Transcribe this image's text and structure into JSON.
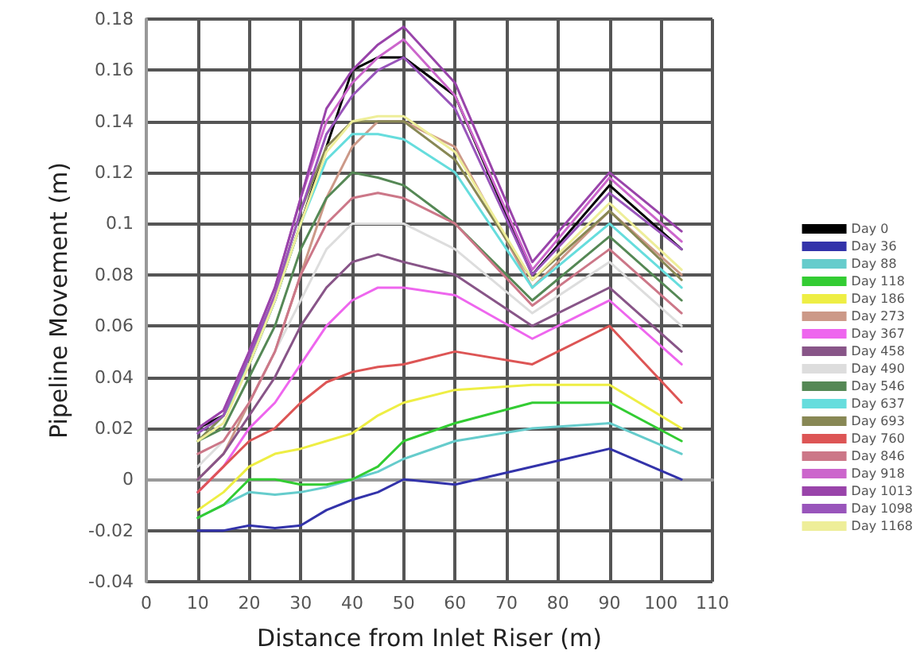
{
  "chart_data": {
    "type": "line",
    "xlabel": "Distance from Inlet Riser (m)",
    "ylabel": "Pipeline Movement (m)",
    "x": [
      10,
      15,
      20,
      25,
      30,
      35,
      40,
      45,
      50,
      60,
      75,
      90,
      104
    ],
    "xlim": [
      0,
      110
    ],
    "xticks": [
      0,
      10,
      20,
      30,
      40,
      50,
      60,
      70,
      80,
      90,
      100,
      110
    ],
    "ylim": [
      -0.04,
      0.18
    ],
    "yticks": [
      -0.04,
      -0.02,
      0,
      0.02,
      0.04,
      0.06,
      0.08,
      0.1,
      0.12,
      0.14,
      0.16,
      0.18
    ],
    "grid": true,
    "legend": "right",
    "marker": "none",
    "line_style": "solid",
    "series": [
      {
        "name": "Day 0",
        "color": "#000000",
        "values": [
          0.02,
          0.025,
          0.045,
          0.07,
          0.1,
          0.13,
          0.16,
          0.165,
          0.165,
          0.15,
          0.08,
          0.115,
          0.09
        ]
      },
      {
        "name": "Day 36",
        "color": "#3333aa",
        "values": [
          -0.02,
          -0.02,
          -0.018,
          -0.019,
          -0.018,
          -0.012,
          -0.008,
          -0.005,
          0.0,
          -0.002,
          0.005,
          0.012,
          0.0
        ]
      },
      {
        "name": "Day 88",
        "color": "#66cccc",
        "values": [
          -0.015,
          -0.01,
          -0.005,
          -0.006,
          -0.005,
          -0.003,
          0.0,
          0.003,
          0.008,
          0.015,
          0.02,
          0.022,
          0.01
        ]
      },
      {
        "name": "Day 118",
        "color": "#33cc33",
        "values": [
          -0.015,
          -0.01,
          0.0,
          0.0,
          -0.002,
          -0.002,
          0.0,
          0.005,
          0.015,
          0.022,
          0.03,
          0.03,
          0.015
        ]
      },
      {
        "name": "Day 186",
        "color": "#eeee44",
        "values": [
          -0.012,
          -0.005,
          0.005,
          0.01,
          0.012,
          0.015,
          0.018,
          0.025,
          0.03,
          0.035,
          0.037,
          0.037,
          0.02
        ]
      },
      {
        "name": "Day 273",
        "color": "#cc9988",
        "values": [
          0.0,
          0.01,
          0.03,
          0.05,
          0.08,
          0.11,
          0.13,
          0.14,
          0.14,
          0.13,
          0.075,
          0.105,
          0.08
        ]
      },
      {
        "name": "Day 367",
        "color": "#ee66ee",
        "values": [
          -0.005,
          0.005,
          0.02,
          0.03,
          0.045,
          0.06,
          0.07,
          0.075,
          0.075,
          0.072,
          0.055,
          0.07,
          0.045
        ]
      },
      {
        "name": "Day 458",
        "color": "#885588",
        "values": [
          0.0,
          0.01,
          0.025,
          0.04,
          0.06,
          0.075,
          0.085,
          0.088,
          0.085,
          0.08,
          0.06,
          0.075,
          0.05
        ]
      },
      {
        "name": "Day 490",
        "color": "#dddddd",
        "values": [
          0.005,
          0.015,
          0.03,
          0.05,
          0.07,
          0.09,
          0.1,
          0.1,
          0.1,
          0.09,
          0.065,
          0.085,
          0.06
        ]
      },
      {
        "name": "Day 546",
        "color": "#558855",
        "values": [
          0.015,
          0.02,
          0.04,
          0.06,
          0.09,
          0.11,
          0.12,
          0.118,
          0.115,
          0.1,
          0.07,
          0.095,
          0.07
        ]
      },
      {
        "name": "Day 637",
        "color": "#66dddd",
        "values": [
          0.015,
          0.025,
          0.045,
          0.07,
          0.1,
          0.125,
          0.135,
          0.135,
          0.133,
          0.12,
          0.075,
          0.1,
          0.075
        ]
      },
      {
        "name": "Day 693",
        "color": "#888855",
        "values": [
          0.015,
          0.025,
          0.048,
          0.072,
          0.105,
          0.13,
          0.14,
          0.14,
          0.14,
          0.125,
          0.078,
          0.105,
          0.078
        ]
      },
      {
        "name": "Day 760",
        "color": "#dd5555",
        "values": [
          -0.005,
          0.005,
          0.015,
          0.02,
          0.03,
          0.038,
          0.042,
          0.044,
          0.045,
          0.05,
          0.045,
          0.06,
          0.03
        ]
      },
      {
        "name": "Day 846",
        "color": "#cc7788",
        "values": [
          0.01,
          0.015,
          0.03,
          0.05,
          0.08,
          0.1,
          0.11,
          0.112,
          0.11,
          0.1,
          0.068,
          0.09,
          0.065
        ]
      },
      {
        "name": "Day 918",
        "color": "#cc66cc",
        "values": [
          0.02,
          0.027,
          0.05,
          0.075,
          0.11,
          0.14,
          0.155,
          0.165,
          0.172,
          0.15,
          0.082,
          0.118,
          0.093
        ]
      },
      {
        "name": "Day 1013",
        "color": "#9944aa",
        "values": [
          0.02,
          0.027,
          0.05,
          0.075,
          0.11,
          0.145,
          0.16,
          0.17,
          0.177,
          0.155,
          0.085,
          0.12,
          0.097
        ]
      },
      {
        "name": "Day 1098",
        "color": "#9955bb",
        "values": [
          0.018,
          0.025,
          0.048,
          0.072,
          0.105,
          0.135,
          0.15,
          0.16,
          0.165,
          0.145,
          0.08,
          0.112,
          0.09
        ]
      },
      {
        "name": "Day 1168",
        "color": "#eeee99",
        "values": [
          0.015,
          0.022,
          0.045,
          0.07,
          0.1,
          0.128,
          0.14,
          0.142,
          0.142,
          0.128,
          0.078,
          0.108,
          0.082
        ]
      }
    ]
  }
}
